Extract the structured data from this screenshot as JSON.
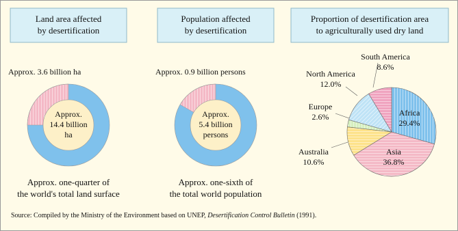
{
  "chart_data": [
    {
      "type": "donut",
      "title": [
        "Land area affected",
        "by desertification"
      ],
      "value": 3.6,
      "total": 14.4,
      "value_label": "Approx. 3.6 billion ha",
      "center_label": [
        "Approx.",
        "14.4 billion",
        "ha"
      ],
      "caption": [
        "Approx. one-quarter of",
        "the world's total land surface"
      ],
      "colors": {
        "value": "#f4b9c6",
        "total": "#7fc1ec",
        "center": "#fdf0c8"
      }
    },
    {
      "type": "donut",
      "title": [
        "Population affected",
        "by desertification"
      ],
      "value": 0.9,
      "total": 5.4,
      "value_label": "Approx. 0.9 billion persons",
      "center_label": [
        "Approx.",
        "5.4 billion",
        "persons"
      ],
      "caption": [
        "Approx. one-sixth of",
        "the total world population"
      ],
      "colors": {
        "value": "#f4b9c6",
        "total": "#7fc1ec",
        "center": "#fdf0c8"
      }
    },
    {
      "type": "pie",
      "title": [
        "Proportion of desertification area",
        "to agriculturally used dry land"
      ],
      "categories": [
        "Africa",
        "Asia",
        "Australia",
        "Europe",
        "North America",
        "South America"
      ],
      "values": [
        29.4,
        36.8,
        10.6,
        2.6,
        12.0,
        8.6
      ],
      "value_labels": [
        "29.4%",
        "36.8%",
        "10.6%",
        "2.6%",
        "12.0%",
        "8.6%"
      ],
      "colors": [
        "#7fc1ec",
        "#f4b9c6",
        "#fde28a",
        "#d6efbf",
        "#bfe3f6",
        "#f0a3bf"
      ]
    }
  ],
  "source": [
    "Source: Compiled by the Ministry of the Environment based on UNEP, ",
    "Desertification Control Bulletin",
    " (1991)."
  ]
}
